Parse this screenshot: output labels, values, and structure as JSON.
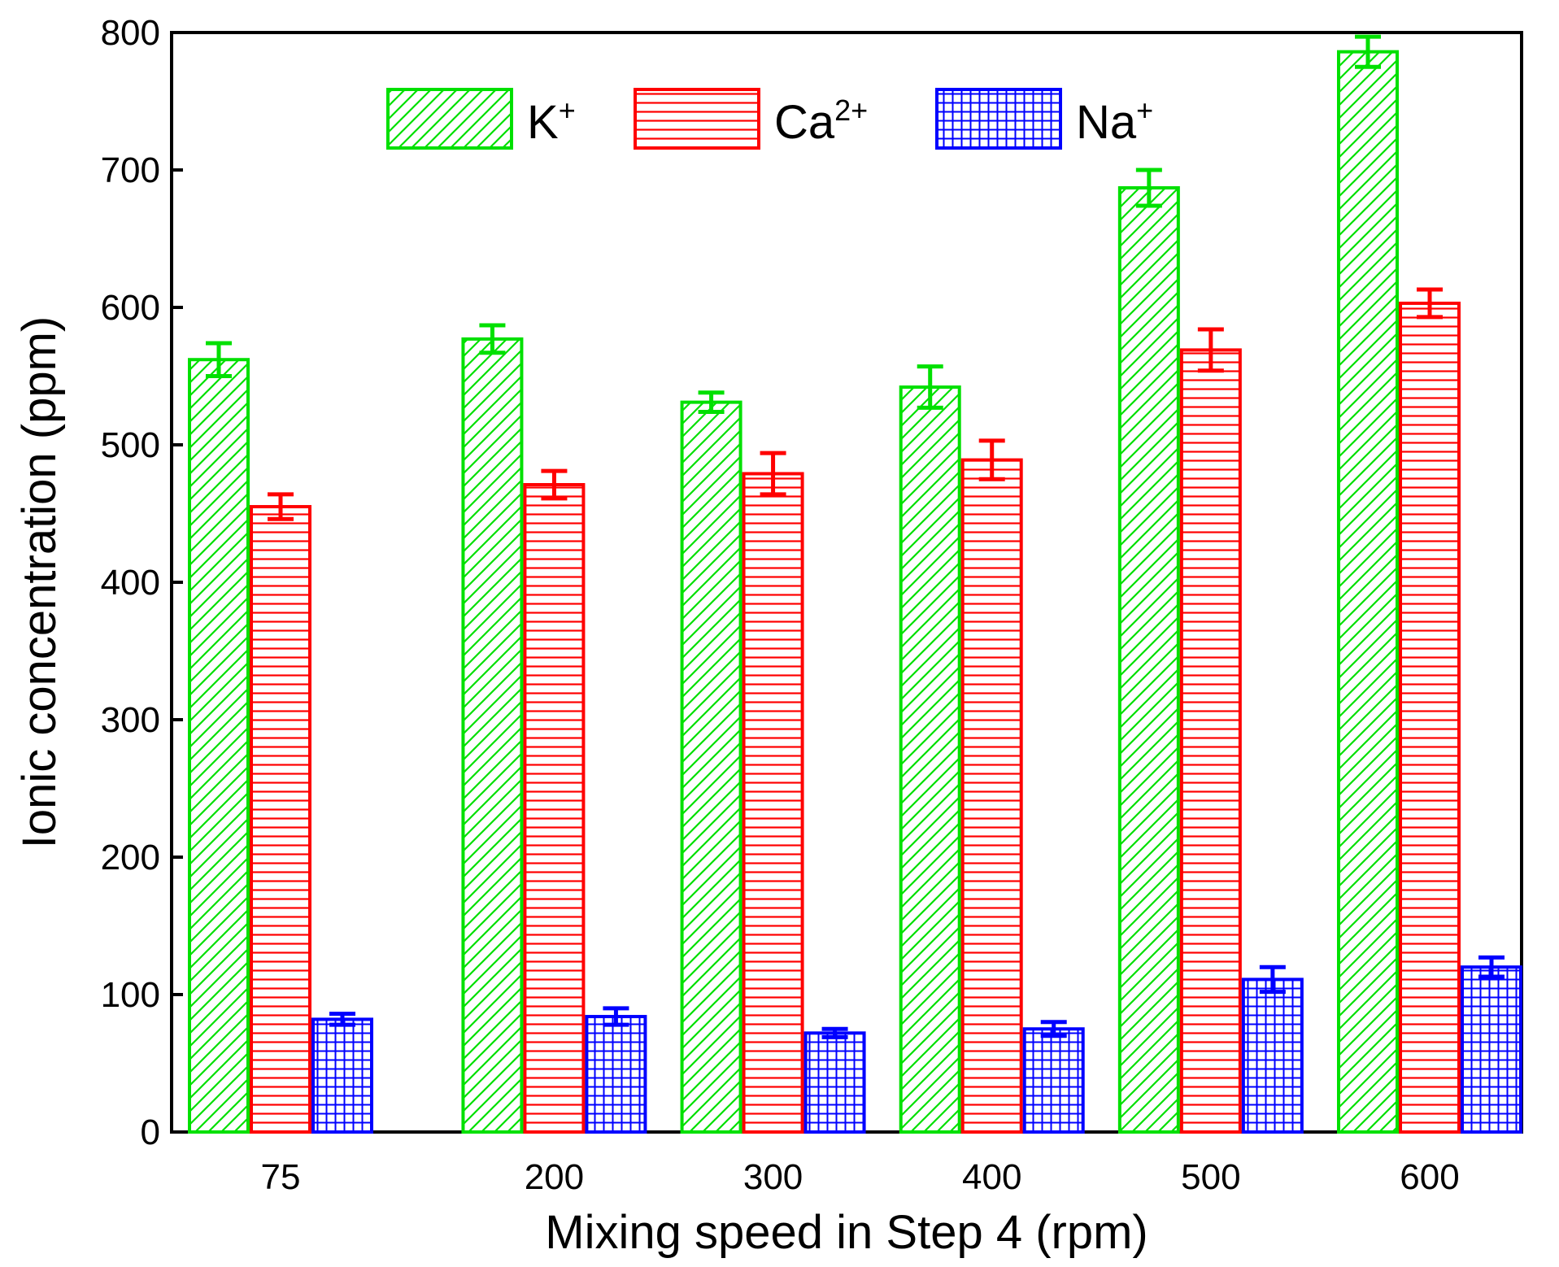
{
  "chart_data": {
    "type": "bar",
    "title": "",
    "xlabel": "Mixing speed in Step 4 (rpm)",
    "ylabel": "Ionic concentration (ppm)",
    "ylim": [
      0,
      800
    ],
    "yticks": [
      0,
      100,
      200,
      300,
      400,
      500,
      600,
      700,
      800
    ],
    "categories": [
      "75",
      "200",
      "300",
      "400",
      "500",
      "600"
    ],
    "category_positions": [
      75,
      200,
      300,
      400,
      500,
      600
    ],
    "legend_position": "top",
    "series": [
      {
        "name": "K",
        "superscript": "+",
        "color": "#00e000",
        "pattern": "diagonal-hatch",
        "values": [
          562,
          577,
          531,
          542,
          687,
          786
        ],
        "errors": [
          12,
          10,
          7,
          15,
          13,
          11
        ]
      },
      {
        "name": "Ca",
        "superscript": "2+",
        "color": "#ff0000",
        "pattern": "horizontal-lines",
        "values": [
          455,
          471,
          479,
          489,
          569,
          603
        ],
        "errors": [
          9,
          10,
          15,
          14,
          15,
          10
        ]
      },
      {
        "name": "Na",
        "superscript": "+",
        "color": "#0000ff",
        "pattern": "grid",
        "values": [
          82,
          84,
          72,
          75,
          111,
          120
        ],
        "errors": [
          4,
          6,
          3,
          5,
          9,
          7
        ]
      }
    ]
  }
}
